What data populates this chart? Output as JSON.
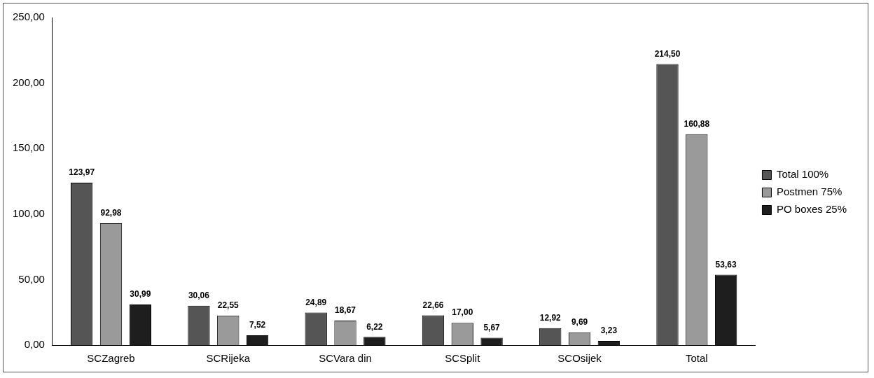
{
  "chart_data": {
    "type": "bar",
    "categories": [
      "SCZagreb",
      "SCRijeka",
      "SCVara din",
      "SCSplit",
      "SCOsijek",
      "Total"
    ],
    "series": [
      {
        "name": "Total 100%",
        "color": "#555555",
        "values": [
          123.97,
          30.06,
          24.89,
          22.66,
          12.92,
          214.5
        ],
        "value_labels": [
          "123,97",
          "30,06",
          "24,89",
          "22,66",
          "12,92",
          "214,50"
        ]
      },
      {
        "name": "Postmen 75%",
        "color": "#9a9a9a",
        "values": [
          92.98,
          22.55,
          18.67,
          17.0,
          9.69,
          160.88
        ],
        "value_labels": [
          "92,98",
          "22,55",
          "18,67",
          "17,00",
          "9,69",
          "160,88"
        ]
      },
      {
        "name": "PO boxes 25%",
        "color": "#1e1e1e",
        "values": [
          30.99,
          7.52,
          6.22,
          5.67,
          3.23,
          53.63
        ],
        "value_labels": [
          "30,99",
          "7,52",
          "6,22",
          "5,67",
          "3,23",
          "53,63"
        ]
      }
    ],
    "ylim": [
      0,
      250
    ],
    "yticks": [
      {
        "value": 0,
        "label": "0,00"
      },
      {
        "value": 50,
        "label": "50,00"
      },
      {
        "value": 100,
        "label": "100,00"
      },
      {
        "value": 150,
        "label": "150,00"
      },
      {
        "value": 200,
        "label": "200,00"
      },
      {
        "value": 250,
        "label": "250,00"
      }
    ],
    "grid": false,
    "legend": "right"
  }
}
